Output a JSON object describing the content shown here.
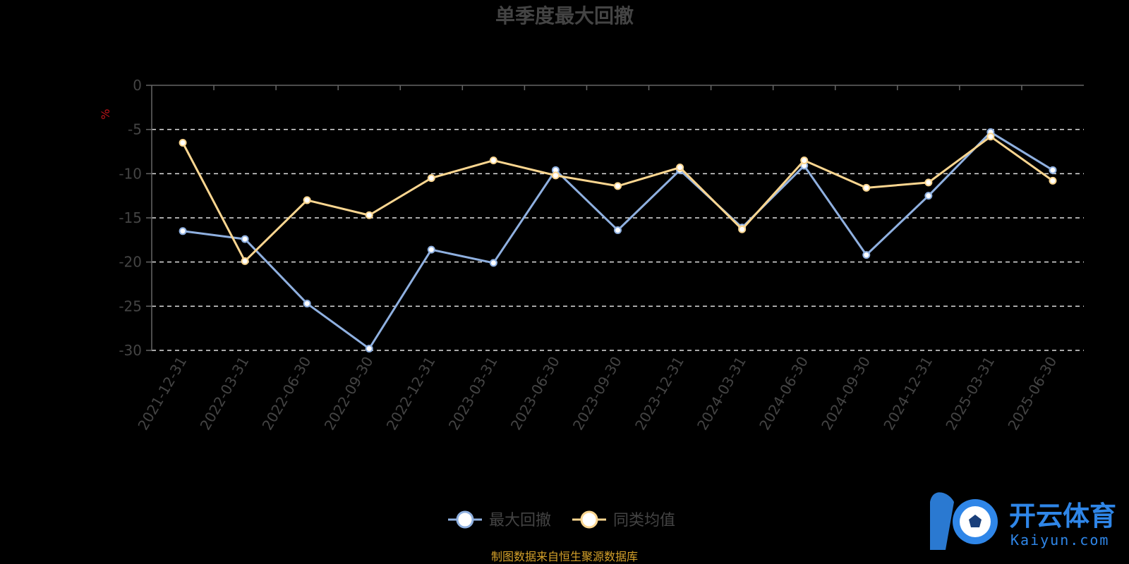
{
  "chart_data": {
    "type": "line",
    "title": "单季度最大回撤",
    "ylabel": "%",
    "categories": [
      "2021-12-31",
      "2022-03-31",
      "2022-06-30",
      "2022-09-30",
      "2022-12-31",
      "2023-03-31",
      "2023-06-30",
      "2023-09-30",
      "2023-12-31",
      "2024-03-31",
      "2024-06-30",
      "2024-09-30",
      "2024-12-31",
      "2025-03-31",
      "2025-06-30"
    ],
    "yticks": [
      "0",
      "-5",
      "-10",
      "-15",
      "-20",
      "-25",
      "-30"
    ],
    "ylim": [
      -30,
      0
    ],
    "grid": true,
    "legend_position": "bottom",
    "series": [
      {
        "name": "最大回撤",
        "color": "#8fb0e0",
        "values": [
          -16.5,
          -17.4,
          -24.7,
          -29.8,
          -18.6,
          -20.1,
          -9.6,
          -16.4,
          -9.6,
          -16.1,
          -9.1,
          -19.2,
          -12.5,
          -5.3,
          -9.6
        ]
      },
      {
        "name": "同类均值",
        "color": "#fbd690",
        "values": [
          -6.5,
          -19.9,
          -13.0,
          -14.7,
          -10.5,
          -8.5,
          -10.2,
          -11.4,
          -9.3,
          -16.3,
          -8.5,
          -11.6,
          -11.0,
          -5.8,
          -10.8
        ]
      }
    ]
  },
  "footer": {
    "source_note": "制图数据来自恒生聚源数据库"
  },
  "watermark": {
    "logo_text": "开云体育",
    "logo_sub": "Kaiyun.com"
  },
  "colors": {
    "background": "#000000",
    "axis": "#666666",
    "grid": "#e0e0e0",
    "unit": "#c0131a",
    "logo": "#2f86e8"
  }
}
